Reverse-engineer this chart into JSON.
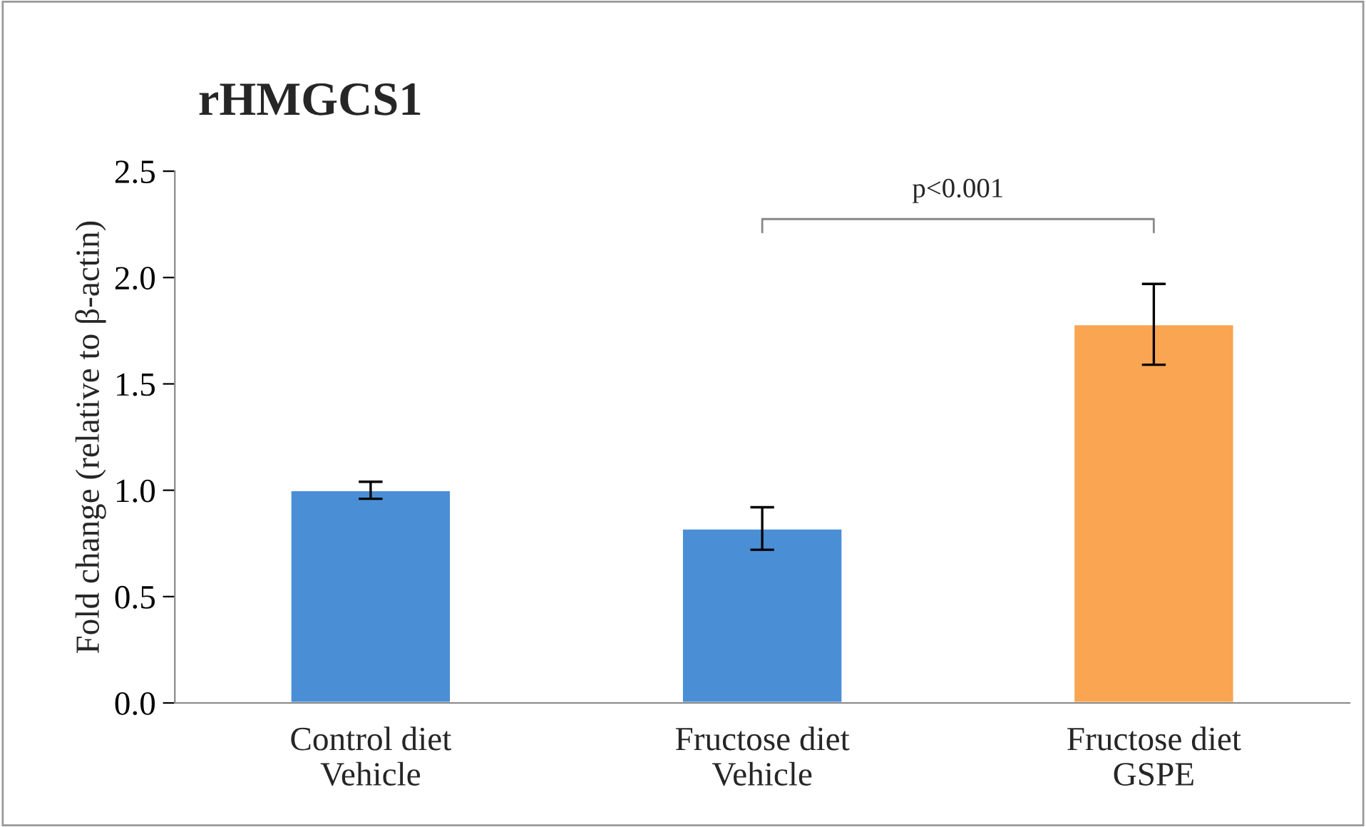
{
  "chart_data": {
    "type": "bar",
    "title": "rHMGCS1",
    "ylabel": "Fold change (relative to β-actin)",
    "categories": [
      "Control diet\nVehicle",
      "Fructose diet\nVehicle",
      "Fructose diet\nGSPE"
    ],
    "values": [
      1.0,
      0.82,
      1.78
    ],
    "errors": [
      0.04,
      0.1,
      0.19
    ],
    "colors": [
      "#4a8fd6",
      "#4a8fd6",
      "#f9a552"
    ],
    "ylim": [
      0,
      2.5
    ],
    "yticks": [
      {
        "value": 0,
        "label": "0.0"
      },
      {
        "value": 0.5,
        "label": "0.5"
      },
      {
        "value": 1,
        "label": "1.0"
      },
      {
        "value": 1.5,
        "label": "1.5"
      },
      {
        "value": 2,
        "label": "2.0"
      },
      {
        "value": 2.5,
        "label": "2.5"
      }
    ],
    "annotations": [
      "p<0.001"
    ],
    "grid": false,
    "legend": false
  }
}
